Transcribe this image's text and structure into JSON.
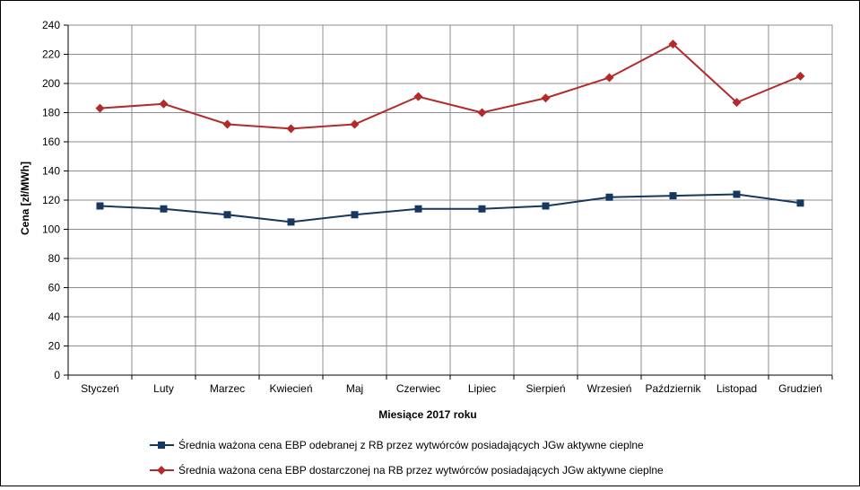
{
  "chart_data": {
    "type": "line",
    "categories": [
      "Styczeń",
      "Luty",
      "Marzec",
      "Kwiecień",
      "Maj",
      "Czerwiec",
      "Lipiec",
      "Sierpień",
      "Wrzesień",
      "Październik",
      "Listopad",
      "Grudzień"
    ],
    "xlabel": "Miesiące 2017  roku",
    "ylabel": "Cena [zł/MWh]",
    "ylim": [
      0,
      240
    ],
    "yticks": [
      0,
      20,
      40,
      60,
      80,
      100,
      120,
      140,
      160,
      180,
      200,
      220,
      240
    ],
    "grid": true,
    "legend_position": "bottom",
    "series": [
      {
        "name": "Średnia ważona cena EBP odebranej z RB przez wytwórców posiadających JGw aktywne cieplne",
        "color": "#17375E",
        "marker": "square",
        "values": [
          116,
          114,
          110,
          105,
          110,
          114,
          114,
          116,
          122,
          123,
          124,
          118
        ]
      },
      {
        "name": "Średnia ważona cena EBP dostarczonej na RB przez wytwórców posiadających JGw aktywne cieplne",
        "color": "#B22A2A",
        "marker": "diamond",
        "values": [
          183,
          186,
          172,
          169,
          172,
          191,
          180,
          190,
          204,
          227,
          187,
          205
        ]
      }
    ]
  }
}
